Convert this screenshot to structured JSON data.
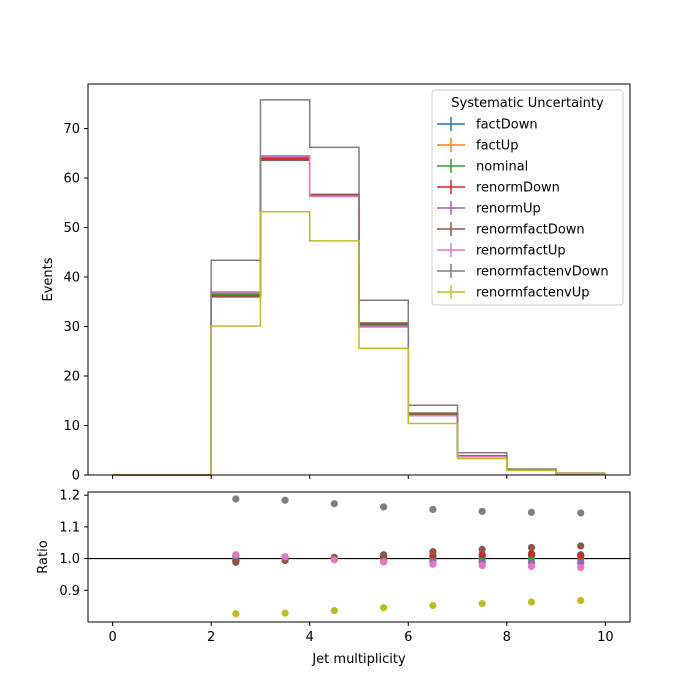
{
  "chart_data": [
    {
      "type": "step",
      "xlabel": "",
      "ylabel": "Events",
      "xlim": [
        -0.5,
        10.5
      ],
      "ylim": [
        0,
        79
      ],
      "x_ticks": [
        0,
        2,
        4,
        6,
        8,
        10
      ],
      "y_ticks": [
        0,
        10,
        20,
        30,
        40,
        50,
        60,
        70
      ],
      "y_tick_labels": [
        "0",
        "10",
        "20",
        "30",
        "40",
        "50",
        "60",
        "70"
      ],
      "bin_edges": [
        0,
        1,
        2,
        3,
        4,
        5,
        6,
        7,
        8,
        9,
        10
      ],
      "legend_title": "Systematic Uncertainty",
      "legend_position": "top-right",
      "series": [
        {
          "name": "factDown",
          "color": "#1f77b4",
          "values": [
            0,
            0,
            36.2,
            63.8,
            56.6,
            30.4,
            12.3,
            3.8,
            1.0,
            0.3
          ]
        },
        {
          "name": "factUp",
          "color": "#ff7f0e",
          "values": [
            0,
            0,
            36.6,
            64.1,
            56.3,
            30.1,
            12.1,
            3.7,
            1.0,
            0.3
          ]
        },
        {
          "name": "nominal",
          "color": "#2ca02c",
          "values": [
            0,
            0,
            36.4,
            64.0,
            56.5,
            30.3,
            12.2,
            3.8,
            1.0,
            0.3
          ]
        },
        {
          "name": "renormDown",
          "color": "#d62728",
          "values": [
            0,
            0,
            36.1,
            63.9,
            56.6,
            30.6,
            12.4,
            3.9,
            1.0,
            0.3
          ]
        },
        {
          "name": "renormUp",
          "color": "#9467bd",
          "values": [
            0,
            0,
            36.8,
            64.2,
            56.4,
            30.0,
            12.0,
            3.7,
            1.0,
            0.3
          ]
        },
        {
          "name": "renormfactDown",
          "color": "#8c564b",
          "values": [
            0,
            0,
            36.0,
            63.6,
            56.7,
            30.7,
            12.5,
            3.9,
            1.0,
            0.3
          ]
        },
        {
          "name": "renormfactUp",
          "color": "#e377c2",
          "values": [
            0,
            0,
            37.0,
            64.5,
            56.3,
            29.9,
            12.0,
            3.7,
            1.0,
            0.3
          ]
        },
        {
          "name": "renormfactenvDown",
          "color": "#7f7f7f",
          "values": [
            0,
            0,
            43.4,
            75.8,
            66.2,
            35.3,
            14.1,
            4.5,
            1.2,
            0.4
          ]
        },
        {
          "name": "renormfactenvUp",
          "color": "#bcbd22",
          "values": [
            0,
            0,
            30.1,
            53.2,
            47.3,
            25.6,
            10.4,
            3.3,
            0.9,
            0.3
          ]
        }
      ]
    },
    {
      "type": "scatter",
      "xlabel": "Jet multiplicity",
      "ylabel": "Ratio",
      "xlim": [
        -0.5,
        10.5
      ],
      "ylim": [
        0.8,
        1.21
      ],
      "x_ticks": [
        0,
        2,
        4,
        6,
        8,
        10
      ],
      "y_ticks": [
        0.9,
        1.0,
        1.1,
        1.2
      ],
      "y_tick_labels": [
        "0.9",
        "1.0",
        "1.1",
        "1.2"
      ],
      "reference_line": 1.0,
      "x": [
        2.5,
        3.5,
        4.5,
        5.5,
        6.5,
        7.5,
        8.5,
        9.5
      ],
      "series": [
        {
          "name": "factDown",
          "color": "#1f77b4",
          "values": [
            0.994,
            0.997,
            1.002,
            1.004,
            1.006,
            1.008,
            1.01,
            1.012
          ]
        },
        {
          "name": "factUp",
          "color": "#ff7f0e",
          "values": [
            1.006,
            1.002,
            0.997,
            0.995,
            0.993,
            0.991,
            0.99,
            0.989
          ]
        },
        {
          "name": "nominal",
          "color": "#2ca02c",
          "values": [
            1.0,
            1.0,
            1.0,
            1.0,
            1.0,
            1.0,
            1.0,
            1.0
          ]
        },
        {
          "name": "renormDown",
          "color": "#d62728",
          "values": [
            0.992,
            0.998,
            1.002,
            1.006,
            1.01,
            1.013,
            1.016,
            1.009
          ]
        },
        {
          "name": "renormUp",
          "color": "#9467bd",
          "values": [
            1.008,
            1.004,
            0.998,
            0.992,
            0.99,
            0.988,
            0.987,
            0.986
          ]
        },
        {
          "name": "renormfactDown",
          "color": "#8c564b",
          "values": [
            0.988,
            0.994,
            1.004,
            1.012,
            1.022,
            1.029,
            1.035,
            1.04
          ]
        },
        {
          "name": "renormfactUp",
          "color": "#e377c2",
          "values": [
            1.012,
            1.006,
            0.996,
            0.989,
            0.982,
            0.978,
            0.975,
            0.972
          ]
        },
        {
          "name": "renormfactenvDown",
          "color": "#7f7f7f",
          "values": [
            1.188,
            1.184,
            1.173,
            1.163,
            1.155,
            1.149,
            1.146,
            1.144
          ]
        },
        {
          "name": "renormfactenvUp",
          "color": "#bcbd22",
          "values": [
            0.826,
            0.828,
            0.836,
            0.845,
            0.852,
            0.858,
            0.863,
            0.868
          ]
        }
      ]
    }
  ]
}
